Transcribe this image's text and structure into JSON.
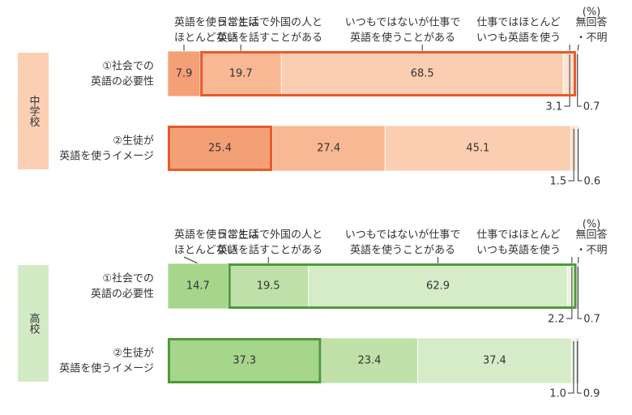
{
  "chart_data": [
    {
      "type": "bar",
      "group": "中学校",
      "unit": "(%)",
      "xlim": [
        0,
        100
      ],
      "categories": [
        "①社会での\n英語の必要性",
        "②生徒が\n英語を使うイメージ"
      ],
      "series": [
        {
          "name": "英語を使うことは\nほとんどない",
          "color": "#f4a077",
          "values": [
            7.9,
            25.4
          ],
          "value_labels": [
            "7.9",
            "25.4"
          ]
        },
        {
          "name": "日常生活で外国の人と\n英語を話すことがある",
          "color": "#f8b893",
          "values": [
            19.7,
            27.4
          ],
          "value_labels": [
            "19.7",
            "27.4"
          ]
        },
        {
          "name": "いつもではないが仕事で\n英語を使うことがある",
          "color": "#fbceb1",
          "values": [
            68.5,
            45.1
          ],
          "value_labels": [
            "68.5",
            "45.1"
          ]
        },
        {
          "name": "仕事ではほとんど\nいつも英語を使う",
          "color": "#fde3d2",
          "values": [
            3.1,
            1.5
          ],
          "value_labels": [
            "3.1",
            "1.5"
          ]
        },
        {
          "name": "無回答\n・不明",
          "color": "#e6e6e6",
          "values": [
            0.7,
            0.6
          ],
          "value_labels": [
            "0.7",
            "0.6"
          ]
        }
      ],
      "highlight": [
        {
          "row": 0,
          "from": 1,
          "to": 3
        },
        {
          "row": 1,
          "from": 0,
          "to": 0
        }
      ],
      "highlight_color": "#e8592b",
      "group_color": "#fbcfb3"
    },
    {
      "type": "bar",
      "group": "高校",
      "unit": "(%)",
      "xlim": [
        0,
        100
      ],
      "categories": [
        "①社会での\n英語の必要性",
        "②生徒が\n英語を使うイメージ"
      ],
      "series": [
        {
          "name": "英語を使うことは\nほとんどない",
          "color": "#a6d58c",
          "values": [
            14.7,
            37.3
          ],
          "value_labels": [
            "14.7",
            "37.3"
          ]
        },
        {
          "name": "日常生活で外国の人と\n英語を話すことがある",
          "color": "#bfe1a9",
          "values": [
            19.5,
            23.4
          ],
          "value_labels": [
            "19.5",
            "23.4"
          ]
        },
        {
          "name": "いつもではないが仕事で\n英語を使うことがある",
          "color": "#d6ecc8",
          "values": [
            62.9,
            37.4
          ],
          "value_labels": [
            "62.9",
            "37.4"
          ]
        },
        {
          "name": "仕事ではほとんど\nいつも英語を使う",
          "color": "#e8f4df",
          "values": [
            2.2,
            1.0
          ],
          "value_labels": [
            "2.2",
            "1.0"
          ]
        },
        {
          "name": "無回答\n・不明",
          "color": "#dedede",
          "values": [
            0.7,
            0.9
          ],
          "value_labels": [
            "0.7",
            "0.9"
          ]
        }
      ],
      "highlight": [
        {
          "row": 0,
          "from": 1,
          "to": 3
        },
        {
          "row": 1,
          "from": 0,
          "to": 0
        }
      ],
      "highlight_color": "#4f9a3a",
      "group_color": "#d3ebc4"
    }
  ]
}
